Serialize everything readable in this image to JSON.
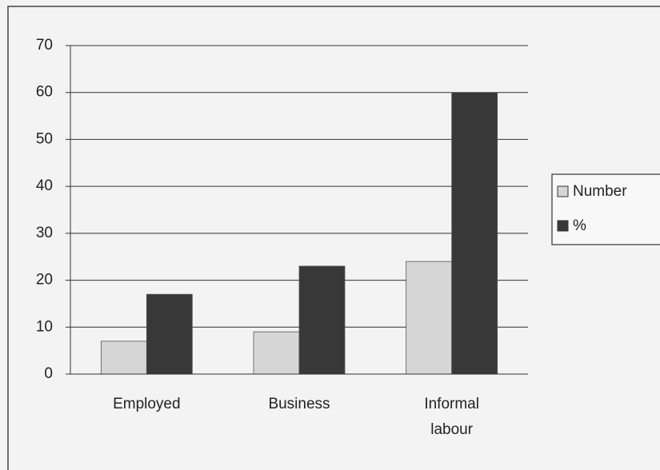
{
  "chart_data": {
    "type": "bar",
    "categories": [
      "Employed",
      "Business",
      "Informal labour"
    ],
    "series": [
      {
        "name": "Number",
        "color": "#d6d6d6",
        "values": [
          7,
          9,
          24
        ]
      },
      {
        "name": "%",
        "color": "#383838",
        "values": [
          17,
          23,
          60
        ]
      }
    ],
    "ylim": [
      0,
      70
    ],
    "yticks": [
      0,
      10,
      20,
      30,
      40,
      50,
      60,
      70
    ],
    "grid": true,
    "legend": "right"
  }
}
